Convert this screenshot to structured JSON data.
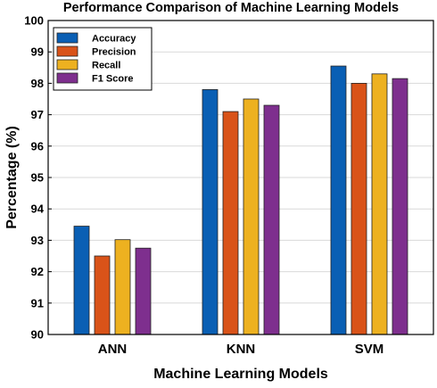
{
  "chart_data": {
    "type": "bar",
    "title": "Performance Comparison of Machine Learning Models",
    "xlabel": "Machine Learning Models",
    "ylabel": "Percentage (%)",
    "categories": [
      "ANN",
      "KNN",
      "SVM"
    ],
    "ylim": [
      90,
      100
    ],
    "yticks": [
      90,
      91,
      92,
      93,
      94,
      95,
      96,
      97,
      98,
      99,
      100
    ],
    "grid": true,
    "legend": "top-left",
    "series": [
      {
        "name": "Accuracy",
        "color": "#0a5fb4",
        "values": [
          93.45,
          97.8,
          98.55
        ]
      },
      {
        "name": "Precision",
        "color": "#d95319",
        "values": [
          92.5,
          97.1,
          98.0
        ]
      },
      {
        "name": "Recall",
        "color": "#edb120",
        "values": [
          93.02,
          97.5,
          98.3
        ]
      },
      {
        "name": "F1 Score",
        "color": "#7e2f8e",
        "values": [
          92.75,
          97.3,
          98.15
        ]
      }
    ]
  }
}
